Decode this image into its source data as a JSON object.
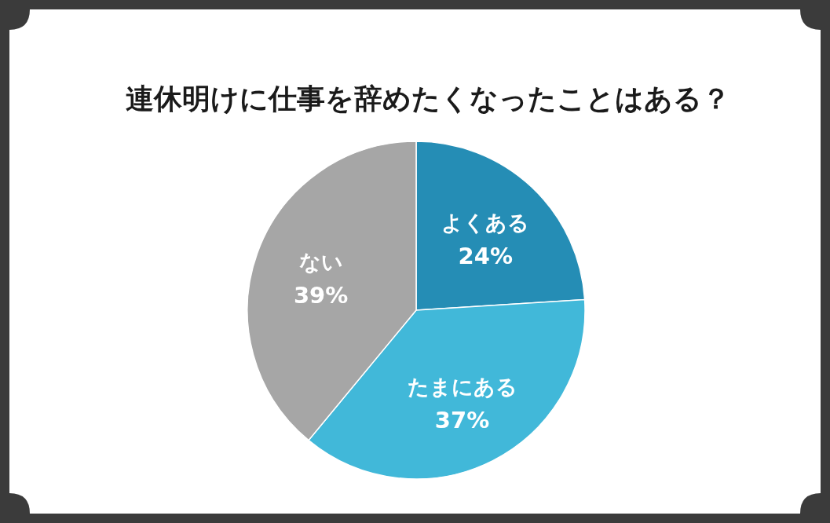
{
  "chart_data": {
    "type": "pie",
    "title": "連休明けに仕事を辞めたくなったことはある？",
    "categories": [
      "よくある",
      "たまにある",
      "ない"
    ],
    "values": [
      24,
      37,
      39
    ],
    "colors": [
      "#258db5",
      "#41b8d9",
      "#a6a6a6"
    ],
    "value_labels": [
      "24%",
      "37%",
      "39%"
    ]
  }
}
